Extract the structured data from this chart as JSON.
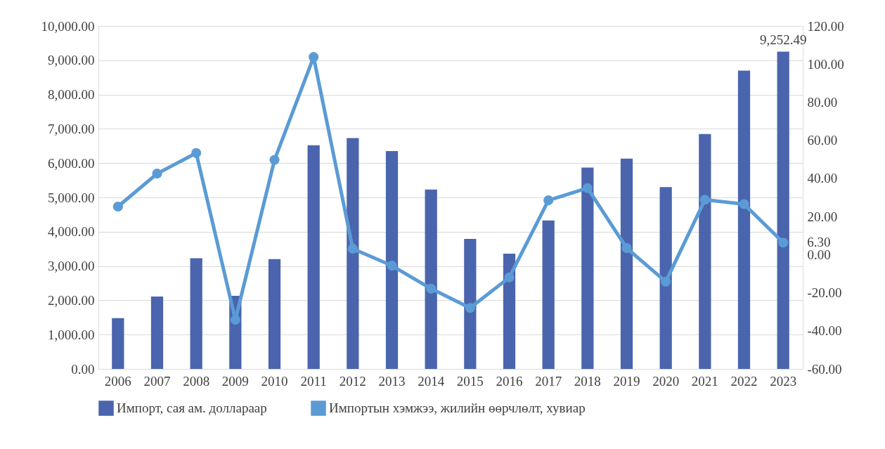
{
  "chart_data": {
    "type": "bar",
    "categories": [
      "2006",
      "2007",
      "2008",
      "2009",
      "2010",
      "2011",
      "2012",
      "2013",
      "2014",
      "2015",
      "2016",
      "2017",
      "2018",
      "2019",
      "2020",
      "2021",
      "2022",
      "2023"
    ],
    "series": [
      {
        "name": "Импорт, сая ам. доллараар",
        "color": "#4a65ad",
        "values": [
          1480,
          2110,
          3230,
          2130,
          3200,
          6520,
          6730,
          6350,
          5230,
          3790,
          3360,
          4330,
          5870,
          6130,
          5300,
          6850,
          8700,
          9252.49
        ],
        "value_labels": [
          null,
          null,
          null,
          null,
          null,
          null,
          null,
          null,
          null,
          null,
          null,
          null,
          null,
          null,
          null,
          null,
          null,
          "9,252.49"
        ]
      },
      {
        "name": "Импортын хэмжээ, жилийн өөрчлөлт, хувиар",
        "type": "line",
        "axis": "y2",
        "color": "#5b9bd5",
        "marker": "circle",
        "values": [
          25.2,
          42.5,
          53.3,
          -34.2,
          49.7,
          103.7,
          3.1,
          -5.8,
          -17.9,
          -28.0,
          -12.0,
          28.5,
          34.9,
          3.4,
          -14.2,
          28.8,
          26.5,
          6.3
        ],
        "value_labels": [
          null,
          null,
          null,
          null,
          null,
          null,
          null,
          null,
          null,
          null,
          null,
          null,
          null,
          null,
          null,
          null,
          null,
          "6.30"
        ]
      }
    ],
    "ylim": [
      0,
      10000
    ],
    "yticks": [
      {
        "value": 0,
        "label": "0.00"
      },
      {
        "value": 1000,
        "label": "1,000.00"
      },
      {
        "value": 2000,
        "label": "2,000.00"
      },
      {
        "value": 3000,
        "label": "3,000.00"
      },
      {
        "value": 4000,
        "label": "4,000.00"
      },
      {
        "value": 5000,
        "label": "5,000.00"
      },
      {
        "value": 6000,
        "label": "6,000.00"
      },
      {
        "value": 7000,
        "label": "7,000.00"
      },
      {
        "value": 8000,
        "label": "8,000.00"
      },
      {
        "value": 9000,
        "label": "9,000.00"
      },
      {
        "value": 10000,
        "label": "10,000.00"
      }
    ],
    "y2lim": [
      -60,
      120
    ],
    "y2ticks": [
      {
        "value": -60,
        "label": "-60.00"
      },
      {
        "value": -40,
        "label": "-40.00"
      },
      {
        "value": -20,
        "label": "-20.00"
      },
      {
        "value": 0,
        "label": "0.00"
      },
      {
        "value": 20,
        "label": "20.00"
      },
      {
        "value": 40,
        "label": "40.00"
      },
      {
        "value": 60,
        "label": "60.00"
      },
      {
        "value": 80,
        "label": "80.00"
      },
      {
        "value": 100,
        "label": "100.00"
      },
      {
        "value": 120,
        "label": "120.00"
      }
    ],
    "grid": "y",
    "legend": "bottom"
  }
}
